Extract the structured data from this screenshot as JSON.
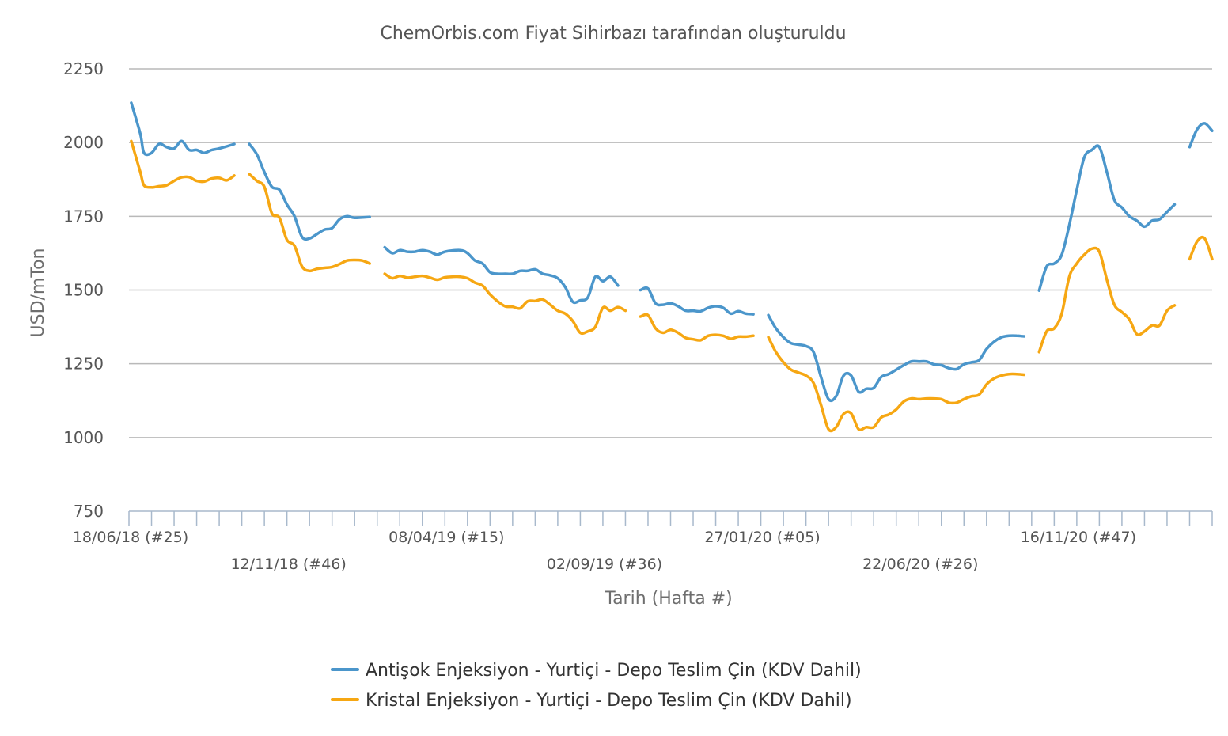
{
  "chart_data": {
    "type": "line",
    "title": "ChemOrbis.com Fiyat Sihirbazı tarafından oluşturuldu",
    "xlabel": "Tarih (Hafta #)",
    "ylabel": "USD/mTon",
    "ylim": [
      750,
      2250
    ],
    "yticks": [
      750,
      1000,
      1250,
      1500,
      1750,
      2000,
      2250
    ],
    "xlim": [
      0,
      144
    ],
    "x_unit": "weeks since 18/06/18",
    "xticks": [
      {
        "x": 0,
        "label": "18/06/18 (#25)"
      },
      {
        "x": 21,
        "label": "12/11/18 (#46)"
      },
      {
        "x": 42,
        "label": "08/04/19 (#15)"
      },
      {
        "x": 63,
        "label": "02/09/19 (#36)"
      },
      {
        "x": 84,
        "label": "27/01/20 (#05)"
      },
      {
        "x": 105,
        "label": "22/06/20 (#26)"
      },
      {
        "x": 126,
        "label": "16/11/20 (#47)"
      }
    ],
    "grid": true,
    "legend_position": "bottom",
    "series": [
      {
        "name": "Antişok Enjeksiyon - Yurtiçi - Depo Teslim Çin (KDV Dahil)",
        "color": "#4b96cb",
        "segments": [
          [
            [
              0.3,
              2135
            ],
            [
              1.5,
              2030
            ],
            [
              2,
              1965
            ],
            [
              3,
              1965
            ],
            [
              4,
              1995
            ],
            [
              5,
              1985
            ],
            [
              6,
              1980
            ],
            [
              7,
              2005
            ],
            [
              8,
              1975
            ],
            [
              9,
              1975
            ],
            [
              10,
              1965
            ],
            [
              11,
              1975
            ],
            [
              12,
              1980
            ],
            [
              14,
              1995
            ]
          ],
          [
            [
              16,
              1995
            ],
            [
              17,
              1960
            ],
            [
              18,
              1900
            ],
            [
              19,
              1850
            ],
            [
              20,
              1840
            ],
            [
              21,
              1790
            ],
            [
              22,
              1750
            ],
            [
              23,
              1680
            ],
            [
              24,
              1675
            ],
            [
              25,
              1690
            ],
            [
              26,
              1705
            ],
            [
              27,
              1710
            ],
            [
              28,
              1740
            ],
            [
              29,
              1750
            ],
            [
              30,
              1745
            ],
            [
              32,
              1748
            ]
          ],
          [
            [
              34,
              1645
            ],
            [
              35,
              1625
            ],
            [
              36,
              1635
            ],
            [
              37,
              1630
            ],
            [
              38,
              1630
            ],
            [
              39,
              1635
            ],
            [
              40,
              1630
            ],
            [
              41,
              1620
            ],
            [
              42,
              1630
            ],
            [
              44,
              1635
            ],
            [
              45,
              1625
            ],
            [
              46,
              1600
            ],
            [
              47,
              1590
            ],
            [
              48,
              1560
            ],
            [
              49,
              1555
            ],
            [
              50,
              1555
            ],
            [
              51,
              1555
            ],
            [
              52,
              1565
            ],
            [
              53,
              1565
            ],
            [
              54,
              1570
            ],
            [
              55,
              1555
            ],
            [
              56,
              1550
            ],
            [
              57,
              1540
            ],
            [
              58,
              1510
            ],
            [
              59,
              1460
            ],
            [
              60,
              1465
            ],
            [
              61,
              1475
            ],
            [
              62,
              1545
            ],
            [
              63,
              1530
            ],
            [
              64,
              1545
            ],
            [
              65,
              1515
            ]
          ],
          [
            [
              68,
              1500
            ],
            [
              69,
              1505
            ],
            [
              70,
              1455
            ],
            [
              71,
              1450
            ],
            [
              72,
              1455
            ],
            [
              73,
              1445
            ],
            [
              74,
              1430
            ],
            [
              75,
              1430
            ],
            [
              76,
              1428
            ],
            [
              77,
              1440
            ],
            [
              78,
              1445
            ],
            [
              79,
              1440
            ],
            [
              80,
              1420
            ],
            [
              81,
              1428
            ],
            [
              82,
              1420
            ],
            [
              83,
              1418
            ]
          ],
          [
            [
              85,
              1415
            ],
            [
              86,
              1370
            ],
            [
              87,
              1340
            ],
            [
              88,
              1320
            ],
            [
              89,
              1315
            ],
            [
              90,
              1310
            ],
            [
              91,
              1290
            ],
            [
              92,
              1205
            ],
            [
              93,
              1130
            ],
            [
              94,
              1140
            ],
            [
              95,
              1210
            ],
            [
              96,
              1210
            ],
            [
              97,
              1155
            ],
            [
              98,
              1165
            ],
            [
              99,
              1168
            ],
            [
              100,
              1205
            ],
            [
              101,
              1215
            ],
            [
              102,
              1230
            ],
            [
              103,
              1245
            ],
            [
              104,
              1258
            ],
            [
              105,
              1258
            ],
            [
              106,
              1258
            ],
            [
              107,
              1248
            ],
            [
              108,
              1245
            ],
            [
              109,
              1235
            ],
            [
              110,
              1232
            ],
            [
              111,
              1248
            ],
            [
              112,
              1255
            ],
            [
              113,
              1262
            ],
            [
              114,
              1300
            ],
            [
              115,
              1325
            ],
            [
              116,
              1340
            ],
            [
              117,
              1345
            ],
            [
              118,
              1345
            ],
            [
              119,
              1343
            ]
          ],
          [
            [
              121,
              1498
            ],
            [
              122,
              1580
            ],
            [
              123,
              1590
            ],
            [
              124,
              1620
            ],
            [
              125,
              1720
            ],
            [
              126,
              1840
            ],
            [
              127,
              1950
            ],
            [
              128,
              1975
            ],
            [
              129,
              1985
            ],
            [
              130,
              1900
            ],
            [
              131,
              1805
            ],
            [
              132,
              1780
            ],
            [
              133,
              1750
            ],
            [
              134,
              1735
            ],
            [
              135,
              1715
            ],
            [
              136,
              1735
            ],
            [
              137,
              1740
            ],
            [
              138,
              1765
            ],
            [
              139,
              1790
            ]
          ],
          [
            [
              141,
              1985
            ],
            [
              142,
              2045
            ],
            [
              143,
              2065
            ],
            [
              144,
              2040
            ]
          ]
        ]
      },
      {
        "name": "Kristal Enjeksiyon - Yurtiçi - Depo Teslim Çin (KDV Dahil)",
        "color": "#f6a713",
        "segments": [
          [
            [
              0.3,
              2005
            ],
            [
              1.5,
              1900
            ],
            [
              2,
              1855
            ],
            [
              3,
              1848
            ],
            [
              4,
              1852
            ],
            [
              5,
              1855
            ],
            [
              6,
              1870
            ],
            [
              7,
              1882
            ],
            [
              8,
              1883
            ],
            [
              9,
              1870
            ],
            [
              10,
              1868
            ],
            [
              11,
              1878
            ],
            [
              12,
              1880
            ],
            [
              13,
              1872
            ],
            [
              14,
              1888
            ]
          ],
          [
            [
              16,
              1893
            ],
            [
              17,
              1870
            ],
            [
              18,
              1850
            ],
            [
              19,
              1760
            ],
            [
              20,
              1745
            ],
            [
              21,
              1670
            ],
            [
              22,
              1650
            ],
            [
              23,
              1580
            ],
            [
              24,
              1565
            ],
            [
              25,
              1572
            ],
            [
              26,
              1575
            ],
            [
              27,
              1578
            ],
            [
              28,
              1588
            ],
            [
              29,
              1600
            ],
            [
              30,
              1602
            ],
            [
              31,
              1600
            ],
            [
              32,
              1590
            ]
          ],
          [
            [
              34,
              1555
            ],
            [
              35,
              1540
            ],
            [
              36,
              1548
            ],
            [
              37,
              1542
            ],
            [
              38,
              1545
            ],
            [
              39,
              1548
            ],
            [
              40,
              1542
            ],
            [
              41,
              1535
            ],
            [
              42,
              1543
            ],
            [
              43,
              1545
            ],
            [
              44,
              1545
            ],
            [
              45,
              1540
            ],
            [
              46,
              1525
            ],
            [
              47,
              1515
            ],
            [
              48,
              1485
            ],
            [
              49,
              1462
            ],
            [
              50,
              1445
            ],
            [
              51,
              1443
            ],
            [
              52,
              1438
            ],
            [
              53,
              1462
            ],
            [
              54,
              1463
            ],
            [
              55,
              1468
            ],
            [
              56,
              1450
            ],
            [
              57,
              1430
            ],
            [
              58,
              1420
            ],
            [
              59,
              1395
            ],
            [
              60,
              1355
            ],
            [
              61,
              1360
            ],
            [
              62,
              1375
            ],
            [
              63,
              1440
            ],
            [
              64,
              1430
            ],
            [
              65,
              1442
            ],
            [
              66,
              1430
            ]
          ],
          [
            [
              68,
              1410
            ],
            [
              69,
              1415
            ],
            [
              70,
              1370
            ],
            [
              71,
              1355
            ],
            [
              72,
              1365
            ],
            [
              73,
              1355
            ],
            [
              74,
              1338
            ],
            [
              75,
              1333
            ],
            [
              76,
              1330
            ],
            [
              77,
              1345
            ],
            [
              78,
              1348
            ],
            [
              79,
              1345
            ],
            [
              80,
              1335
            ],
            [
              81,
              1342
            ],
            [
              82,
              1342
            ],
            [
              83,
              1345
            ]
          ],
          [
            [
              85,
              1340
            ],
            [
              86,
              1290
            ],
            [
              87,
              1255
            ],
            [
              88,
              1230
            ],
            [
              89,
              1220
            ],
            [
              90,
              1210
            ],
            [
              91,
              1185
            ],
            [
              92,
              1110
            ],
            [
              93,
              1028
            ],
            [
              94,
              1035
            ],
            [
              95,
              1080
            ],
            [
              96,
              1082
            ],
            [
              97,
              1028
            ],
            [
              98,
              1035
            ],
            [
              99,
              1035
            ],
            [
              100,
              1068
            ],
            [
              101,
              1078
            ],
            [
              102,
              1095
            ],
            [
              103,
              1122
            ],
            [
              104,
              1132
            ],
            [
              105,
              1130
            ],
            [
              106,
              1132
            ],
            [
              107,
              1132
            ],
            [
              108,
              1130
            ],
            [
              109,
              1118
            ],
            [
              110,
              1118
            ],
            [
              111,
              1130
            ],
            [
              112,
              1140
            ],
            [
              113,
              1145
            ],
            [
              114,
              1180
            ],
            [
              115,
              1200
            ],
            [
              116,
              1210
            ],
            [
              117,
              1215
            ],
            [
              118,
              1215
            ],
            [
              119,
              1213
            ]
          ],
          [
            [
              121,
              1290
            ],
            [
              122,
              1360
            ],
            [
              123,
              1370
            ],
            [
              124,
              1420
            ],
            [
              125,
              1545
            ],
            [
              126,
              1590
            ],
            [
              127,
              1620
            ],
            [
              128,
              1640
            ],
            [
              129,
              1630
            ],
            [
              130,
              1535
            ],
            [
              131,
              1450
            ],
            [
              132,
              1425
            ],
            [
              133,
              1400
            ],
            [
              134,
              1350
            ],
            [
              135,
              1360
            ],
            [
              136,
              1380
            ],
            [
              137,
              1380
            ],
            [
              138,
              1430
            ],
            [
              139,
              1448
            ]
          ],
          [
            [
              141,
              1605
            ],
            [
              142,
              1665
            ],
            [
              143,
              1675
            ],
            [
              144,
              1605
            ]
          ]
        ]
      }
    ]
  }
}
